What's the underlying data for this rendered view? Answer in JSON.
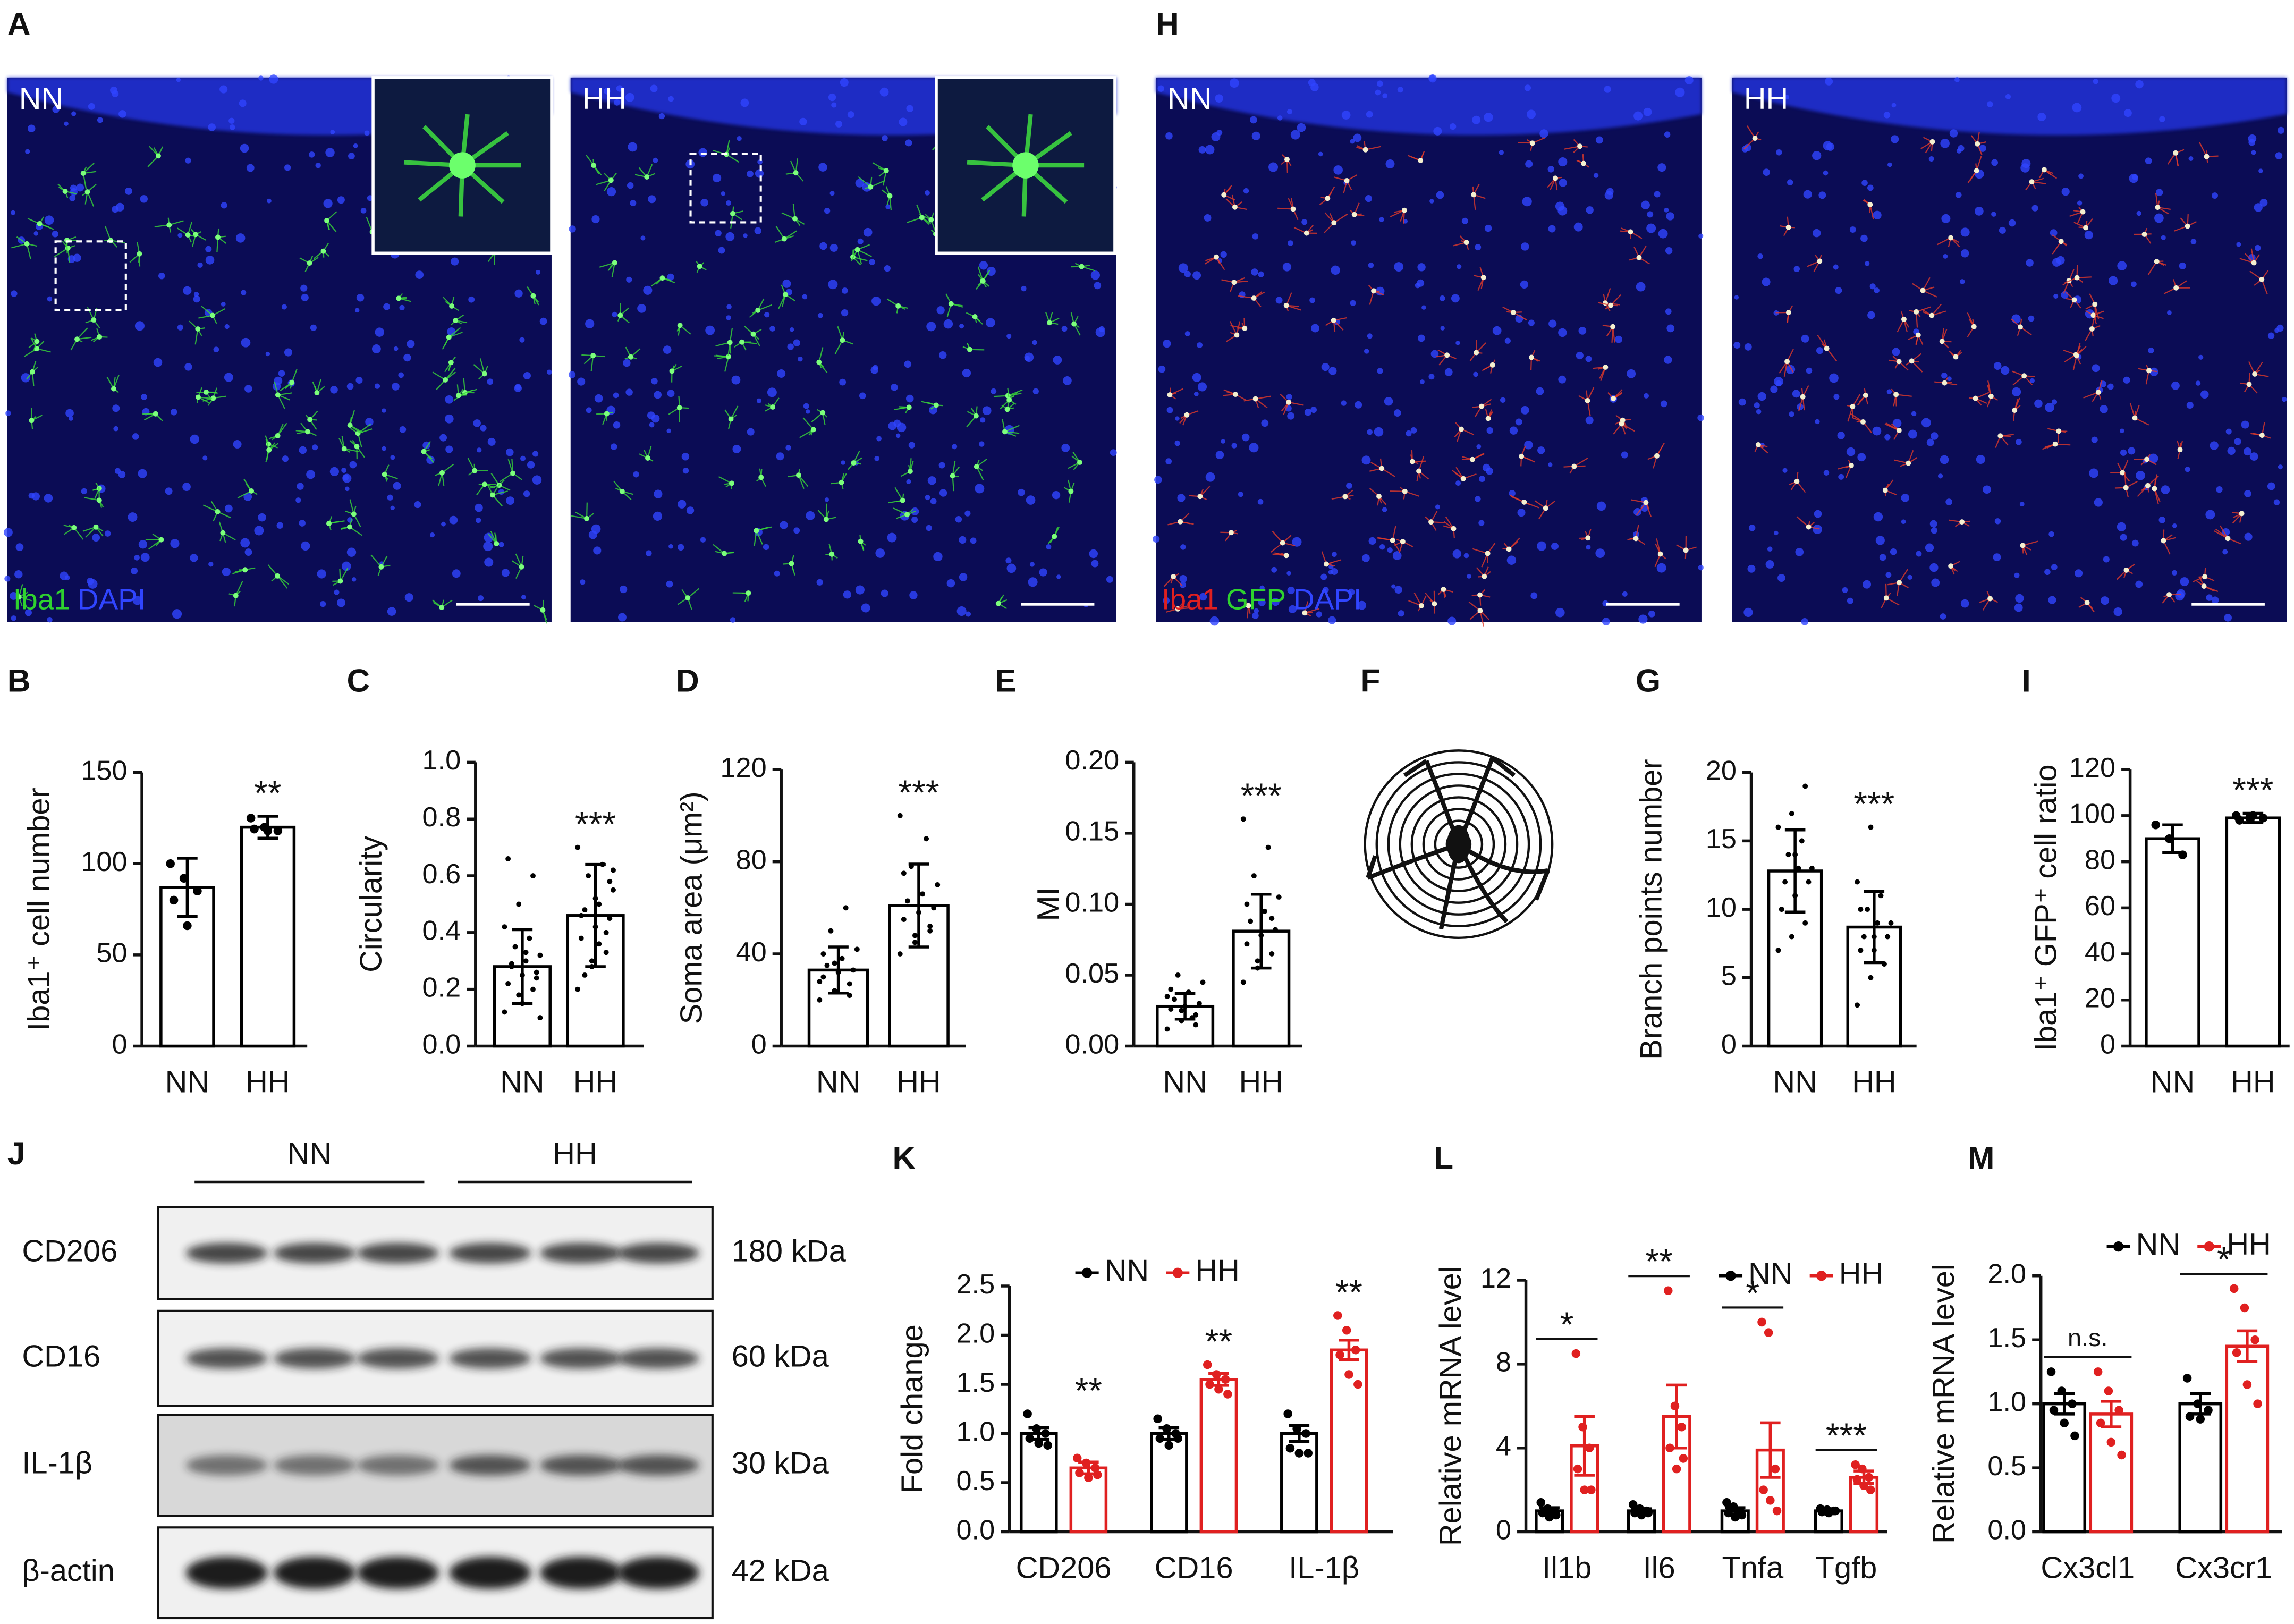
{
  "figure": {
    "A": {
      "panel": "A",
      "labels": [
        "NN",
        "HH"
      ],
      "stains": [
        {
          "text": "Iba1",
          "color": "#2fd22f"
        },
        {
          "text": "DAPI",
          "color": "#3045ff"
        }
      ]
    },
    "H": {
      "panel": "H",
      "labels": [
        "NN",
        "HH"
      ],
      "stains": [
        {
          "text": "Iba1",
          "color": "#e02020"
        },
        {
          "text": "GFP",
          "color": "#2fd22f"
        },
        {
          "text": "DAPI",
          "color": "#3045ff"
        }
      ]
    },
    "F": {
      "panel": "F"
    },
    "J": {
      "panel": "J",
      "groups": [
        "NN",
        "HH"
      ],
      "rows": [
        {
          "protein": "CD206",
          "size": "180 kDa"
        },
        {
          "protein": "CD16",
          "size": "60 kDa"
        },
        {
          "protein": "IL-1β",
          "size": "30 kDa"
        },
        {
          "protein": "β-actin",
          "size": "42 kDa"
        }
      ]
    }
  },
  "chart_data": [
    {
      "type": "bar",
      "panel": "B",
      "ylabel": "Iba1⁺ cell number",
      "categories": [
        "NN",
        "HH"
      ],
      "values": [
        87,
        120
      ],
      "errors": [
        16,
        6
      ],
      "points": [
        [
          100,
          92,
          85,
          80,
          66
        ],
        [
          125,
          120,
          118,
          119,
          118
        ]
      ],
      "annotations": [
        null,
        "**"
      ],
      "ylim": [
        0,
        150
      ],
      "yticks": [
        0,
        50,
        100,
        150
      ]
    },
    {
      "type": "bar",
      "panel": "C",
      "ylabel": "Circularity",
      "categories": [
        "NN",
        "HH"
      ],
      "values": [
        0.28,
        0.46
      ],
      "errors": [
        0.13,
        0.18
      ],
      "points": [
        [
          0.12,
          0.18,
          0.2,
          0.22,
          0.25,
          0.26,
          0.28,
          0.3,
          0.32,
          0.35,
          0.38,
          0.42,
          0.5,
          0.6,
          0.66,
          0.15,
          0.24,
          0.29,
          0.33,
          0.1
        ],
        [
          0.2,
          0.28,
          0.33,
          0.38,
          0.42,
          0.45,
          0.48,
          0.5,
          0.55,
          0.6,
          0.64,
          0.7,
          0.3,
          0.4,
          0.46,
          0.52,
          0.58,
          0.25,
          0.36,
          0.62
        ]
      ],
      "annotations": [
        null,
        "***"
      ],
      "ylim": [
        0,
        1
      ],
      "yticks": [
        {
          "value": 0,
          "label": "0.0"
        },
        0.2,
        0.4,
        0.6,
        0.8,
        {
          "value": 1,
          "label": "1.0"
        }
      ]
    },
    {
      "type": "bar",
      "panel": "D",
      "ylabel": "Soma area (μm²)",
      "categories": [
        "NN",
        "HH"
      ],
      "values": [
        33,
        61
      ],
      "errors": [
        10,
        18
      ],
      "points": [
        [
          20,
          24,
          27,
          30,
          32,
          33,
          35,
          38,
          42,
          50,
          60,
          28,
          36,
          22,
          40
        ],
        [
          40,
          45,
          50,
          55,
          58,
          60,
          63,
          66,
          70,
          78,
          90,
          100,
          48,
          52,
          75
        ]
      ],
      "annotations": [
        null,
        "***"
      ],
      "ylim": [
        0,
        120
      ],
      "yticks": [
        0,
        40,
        80,
        120
      ]
    },
    {
      "type": "bar",
      "panel": "E",
      "ylabel": "MI",
      "categories": [
        "NN",
        "HH"
      ],
      "values": [
        0.028,
        0.081
      ],
      "errors": [
        0.009,
        0.026
      ],
      "points": [
        [
          0.012,
          0.018,
          0.022,
          0.026,
          0.028,
          0.03,
          0.033,
          0.038,
          0.045,
          0.05,
          0.02,
          0.035,
          0.025,
          0.015,
          0.04
        ],
        [
          0.045,
          0.055,
          0.065,
          0.072,
          0.078,
          0.082,
          0.088,
          0.095,
          0.105,
          0.12,
          0.14,
          0.16,
          0.06,
          0.09,
          0.1
        ]
      ],
      "annotations": [
        null,
        "***"
      ],
      "ylim": [
        0,
        0.2
      ],
      "yticks": [
        {
          "value": 0,
          "label": "0.00"
        },
        0.05,
        {
          "value": 0.1,
          "label": "0.10"
        },
        0.15,
        {
          "value": 0.2,
          "label": "0.20"
        }
      ]
    },
    {
      "type": "bar",
      "panel": "G",
      "ylabel": "Branch points number",
      "categories": [
        "NN",
        "HH"
      ],
      "values": [
        12.8,
        8.7
      ],
      "errors": [
        3,
        2.6
      ],
      "points": [
        [
          7,
          8,
          9,
          10,
          11,
          12,
          12,
          13,
          13,
          14,
          15,
          16,
          17,
          19,
          10,
          14
        ],
        [
          3,
          5,
          6,
          7,
          7,
          8,
          8,
          9,
          9,
          10,
          11,
          12,
          16,
          6,
          10,
          8
        ]
      ],
      "annotations": [
        null,
        "***"
      ],
      "ylim": [
        0,
        20
      ],
      "yticks": [
        0,
        5,
        10,
        15,
        20
      ]
    },
    {
      "type": "bar",
      "panel": "I",
      "ylabel": "Iba1⁺ GFP⁺ cell ratio",
      "categories": [
        "NN",
        "HH"
      ],
      "values": [
        90,
        99
      ],
      "errors": [
        6,
        2
      ],
      "points": [
        [
          96,
          90,
          83
        ],
        [
          100,
          99,
          99,
          98,
          100
        ]
      ],
      "annotations": [
        null,
        "***"
      ],
      "ylim": [
        0,
        120
      ],
      "yticks": [
        0,
        20,
        40,
        60,
        80,
        100,
        120
      ]
    },
    {
      "type": "bar",
      "panel": "K",
      "ylabel": "Fold change",
      "categories": [
        "CD206",
        "CD16",
        "IL-1β"
      ],
      "series": [
        {
          "name": "NN",
          "color": "#000000",
          "values": [
            1.0,
            1.0,
            1.0
          ],
          "errors": [
            0.06,
            0.06,
            0.08
          ],
          "points": [
            [
              1.2,
              1.05,
              1.0,
              0.95,
              0.9,
              0.88
            ],
            [
              1.15,
              1.05,
              1.0,
              0.95,
              0.88,
              0.95
            ],
            [
              1.2,
              1.05,
              1.0,
              0.85,
              0.8,
              0.8
            ]
          ]
        },
        {
          "name": "HH",
          "color": "#e02020",
          "values": [
            0.65,
            1.55,
            1.85
          ],
          "errors": [
            0.06,
            0.06,
            0.1
          ],
          "points": [
            [
              0.75,
              0.7,
              0.65,
              0.6,
              0.55,
              0.58
            ],
            [
              1.7,
              1.6,
              1.55,
              1.5,
              1.45,
              1.4
            ],
            [
              2.2,
              2.05,
              1.85,
              1.8,
              1.6,
              1.5
            ]
          ]
        }
      ],
      "annotations": [
        "**",
        "**",
        "**"
      ],
      "annotation_bar": false,
      "ylim": [
        0,
        2.5
      ],
      "yticks": [
        {
          "value": 0,
          "label": "0.0"
        },
        0.5,
        {
          "value": 1,
          "label": "1.0"
        },
        1.5,
        {
          "value": 2,
          "label": "2.0"
        },
        2.5
      ]
    },
    {
      "type": "bar",
      "panel": "L",
      "ylabel": "Relative mRNA level",
      "categories": [
        "Il1b",
        "Il6",
        "Tnfa",
        "Tgfb"
      ],
      "series": [
        {
          "name": "NN",
          "color": "#000000",
          "values": [
            1.0,
            1.0,
            1.0,
            1.0
          ],
          "errors": [
            0.15,
            0.1,
            0.15,
            0.05
          ],
          "points": [
            [
              1.4,
              1.1,
              1.0,
              0.9,
              0.7,
              0.8
            ],
            [
              1.3,
              1.1,
              1.0,
              0.9,
              0.8,
              0.9
            ],
            [
              1.4,
              1.2,
              1.0,
              0.9,
              0.7,
              0.8
            ],
            [
              1.1,
              1.05,
              1.0,
              0.95,
              0.9,
              1.0
            ]
          ]
        },
        {
          "name": "HH",
          "color": "#e02020",
          "values": [
            4.1,
            5.5,
            3.9,
            2.6
          ],
          "errors": [
            1.4,
            1.5,
            1.3,
            0.3
          ],
          "points": [
            [
              8.5,
              5,
              4,
              3,
              2,
              2
            ],
            [
              11.5,
              6,
              5,
              4,
              3,
              3.5
            ],
            [
              10,
              9.5,
              3,
              2,
              1.5,
              1
            ],
            [
              3.2,
              3,
              2.6,
              2.5,
              2.2,
              2
            ]
          ]
        }
      ],
      "annotations": [
        "*",
        "**",
        "*",
        "***"
      ],
      "annotation_bar": true,
      "ylim": [
        0,
        12
      ],
      "yticks": [
        0,
        4,
        8,
        12
      ]
    },
    {
      "type": "bar",
      "panel": "M",
      "ylabel": "Relative mRNA level",
      "categories": [
        "Cx3cl1",
        "Cx3cr1"
      ],
      "series": [
        {
          "name": "NN",
          "color": "#000000",
          "values": [
            1.0,
            1.0
          ],
          "errors": [
            0.08,
            0.08
          ],
          "points": [
            [
              1.25,
              1.1,
              1.0,
              0.95,
              0.85,
              0.75
            ],
            [
              1.2,
              1.0,
              0.95,
              0.9,
              0.88
            ]
          ]
        },
        {
          "name": "HH",
          "color": "#e02020",
          "values": [
            0.92,
            1.45
          ],
          "errors": [
            0.1,
            0.12
          ],
          "points": [
            [
              1.25,
              1.1,
              0.95,
              0.85,
              0.7,
              0.6
            ],
            [
              1.9,
              1.75,
              1.5,
              1.4,
              1.15,
              1.0
            ]
          ]
        }
      ],
      "annotations": [
        "n.s.",
        "*"
      ],
      "annotation_bar": true,
      "ylim": [
        0,
        2
      ],
      "yticks": [
        {
          "value": 0,
          "label": "0.0"
        },
        0.5,
        {
          "value": 1,
          "label": "1.0"
        },
        1.5,
        {
          "value": 2,
          "label": "2.0"
        }
      ]
    }
  ]
}
